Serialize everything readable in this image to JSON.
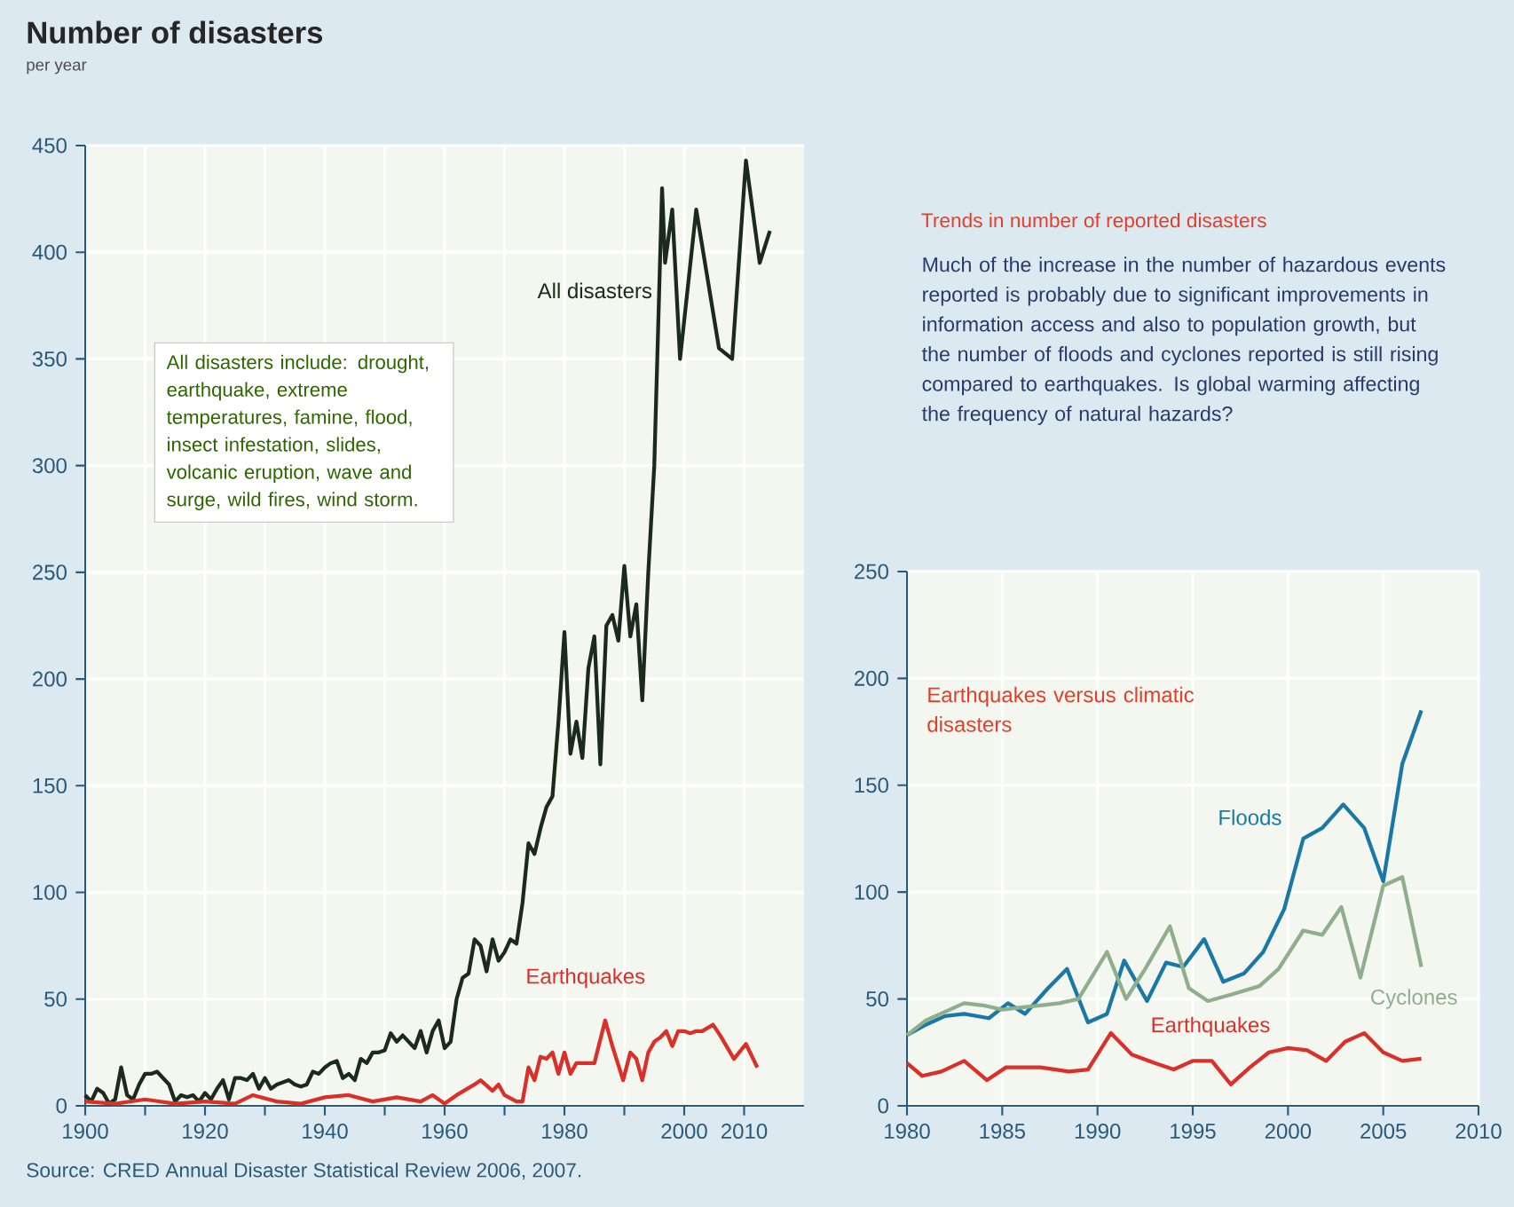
{
  "chart_data": [
    {
      "type": "line",
      "title": "Number of disasters",
      "subtitle": "per year",
      "xlim": [
        1900,
        2020
      ],
      "ylim": [
        0,
        450
      ],
      "xticks": [
        1900,
        {
          "value": 1910,
          "label": null
        },
        1920,
        {
          "value": 1930,
          "label": null
        },
        1940,
        {
          "value": 1950,
          "label": null
        },
        1960,
        {
          "value": 1970,
          "label": null
        },
        1980,
        {
          "value": 1990,
          "label": null
        },
        2000,
        2010
      ],
      "yticks": [
        0,
        50,
        100,
        150,
        200,
        250,
        300,
        350,
        400,
        450
      ],
      "grid": true,
      "marker": "none",
      "line_style": "solid",
      "series": [
        {
          "name": "All disasters",
          "color": "#1c2a1c",
          "x": [
            1900,
            1901,
            1902,
            1903,
            1904,
            1905,
            1906,
            1907,
            1908,
            1909,
            1910,
            1911,
            1912,
            1913,
            1914,
            1915,
            1916,
            1917,
            1918,
            1919,
            1920,
            1921,
            1922,
            1923,
            1924,
            1925,
            1926,
            1927,
            1928,
            1929,
            1930,
            1931,
            1932,
            1933,
            1934,
            1935,
            1936,
            1937,
            1938,
            1939,
            1940,
            1941,
            1942,
            1943,
            1944,
            1945,
            1946,
            1947,
            1948,
            1949,
            1950,
            1951,
            1952,
            1953,
            1954,
            1955,
            1956,
            1957,
            1958,
            1959,
            1960,
            1961,
            1962,
            1963,
            1964,
            1965,
            1966,
            1967,
            1968,
            1969,
            1970,
            1971,
            1972,
            1973,
            1974,
            1975,
            1976,
            1977,
            1978,
            1979,
            1980,
            1981,
            1982,
            1983,
            1984,
            1985,
            1986,
            1987,
            1988,
            1989,
            1990,
            1991,
            1992,
            1993,
            1994,
            1995,
            1996.3,
            1996.8,
            1998,
            1999.3,
            2002,
            2005.8,
            2008,
            2010.3,
            2012.6,
            2014.3
          ],
          "values": [
            5,
            2,
            8,
            6,
            1,
            3,
            18,
            5,
            3,
            10,
            15,
            15,
            16,
            13,
            10,
            2,
            5,
            4,
            5,
            2,
            6,
            3,
            8,
            12,
            3,
            13,
            13,
            12,
            15,
            8,
            13,
            8,
            10,
            11,
            12,
            10,
            9,
            10,
            16,
            15,
            18,
            20,
            21,
            13,
            15,
            12,
            22,
            20,
            25,
            25,
            26,
            34,
            30,
            33,
            30,
            27,
            35,
            25,
            35,
            40,
            27,
            30,
            50,
            60,
            62,
            78,
            75,
            63,
            78,
            68,
            72,
            78,
            76,
            95,
            123,
            118,
            130,
            140,
            145,
            180,
            222,
            165,
            180,
            163,
            205,
            220,
            160,
            225,
            230,
            218,
            253,
            220,
            235,
            190,
            250,
            300,
            430,
            395,
            420,
            350,
            420,
            355,
            350,
            443,
            395,
            410
          ]
        },
        {
          "name": "Earthquakes",
          "color": "#d9302a",
          "x": [
            1900,
            1905,
            1910,
            1915,
            1920,
            1925,
            1928,
            1932,
            1936,
            1940,
            1944,
            1948,
            1952,
            1956,
            1958,
            1960,
            1962,
            1965,
            1966,
            1968,
            1969,
            1970,
            1972,
            1973,
            1974,
            1975,
            1976,
            1977,
            1978,
            1979,
            1980,
            1981,
            1982,
            1983,
            1985,
            1986.8,
            1988,
            1989.8,
            1991,
            1992,
            1993,
            1994,
            1995,
            1996,
            1997,
            1998,
            1999,
            2000,
            2001,
            2002,
            2003,
            2004.8,
            2006,
            2008.3,
            2010.3,
            2012.2
          ],
          "values": [
            2,
            1,
            3,
            1,
            2,
            1,
            5,
            2,
            1,
            4,
            5,
            2,
            4,
            2,
            5,
            1,
            5,
            10,
            12,
            7,
            10,
            5,
            2,
            2,
            18,
            12,
            23,
            22,
            25,
            15,
            25,
            15,
            20,
            20,
            20,
            40,
            28,
            12,
            25,
            22,
            12,
            25,
            30,
            32,
            35,
            28,
            35,
            35,
            34,
            35,
            35,
            38,
            33,
            22,
            29,
            18
          ]
        }
      ],
      "annotations": [
        "All disasters include: drought, earthquake, extreme temperatures, famine, flood, insect infestation, slides, volcanic eruption, wave and surge, wild fires, wind storm.",
        "Source: CRED Annual Disaster Statistical Review 2006, 2007."
      ]
    },
    {
      "type": "line",
      "title": "Earthquakes versus climatic disasters",
      "xlim": [
        1980,
        2010
      ],
      "ylim": [
        0,
        250
      ],
      "xticks": [
        1980,
        1985,
        1990,
        1995,
        2000,
        2005,
        2010
      ],
      "yticks": [
        0,
        50,
        100,
        150,
        200,
        250
      ],
      "grid": true,
      "marker": "none",
      "line_style": "solid",
      "series": [
        {
          "name": "Floods",
          "color": "#1a78a6",
          "x": [
            1980,
            1981,
            1982,
            1983,
            1984.3,
            1985.3,
            1986.2,
            1987.4,
            1988.4,
            1989.5,
            1990.5,
            1991.4,
            1992.6,
            1993.6,
            1994.5,
            1995.6,
            1996.6,
            1997.7,
            1998.7,
            1999.8,
            2000.8,
            2001.8,
            2002.9,
            2004,
            2005,
            2006,
            2007
          ],
          "values": [
            33,
            38,
            42,
            43,
            41,
            48,
            43,
            55,
            64,
            39,
            43,
            68,
            49,
            67,
            65,
            78,
            58,
            62,
            72,
            92,
            125,
            130,
            141,
            130,
            105,
            160,
            185
          ]
        },
        {
          "name": "Cyclones",
          "color": "#8fae8c",
          "x": [
            1980,
            1981,
            1982,
            1983,
            1984,
            1985,
            1986,
            1987,
            1988,
            1989,
            1990.5,
            1991.5,
            1992.5,
            1993.8,
            1994.8,
            1995.8,
            1997,
            1998.5,
            1999.5,
            2000.8,
            2001.8,
            2002.8,
            2003.8,
            2005,
            2006,
            2007
          ],
          "values": [
            33,
            40,
            44,
            48,
            47,
            45,
            46,
            47,
            48,
            50,
            72,
            50,
            64,
            84,
            55,
            49,
            52,
            56,
            64,
            82,
            80,
            93,
            60,
            103,
            107,
            65
          ]
        },
        {
          "name": "Earthquakes",
          "color": "#d9302a",
          "x": [
            1980,
            1980.8,
            1981.8,
            1983,
            1984.2,
            1985.2,
            1987,
            1988.5,
            1989.5,
            1990.7,
            1991.8,
            1993,
            1994,
            1995,
            1996,
            1997,
            1998,
            1999,
            2000,
            2001,
            2002,
            2003,
            2004,
            2005,
            2006,
            2007
          ],
          "values": [
            20,
            14,
            16,
            21,
            12,
            18,
            18,
            16,
            17,
            34,
            24,
            20,
            17,
            21,
            21,
            10,
            18,
            25,
            27,
            26,
            21,
            30,
            34,
            25,
            21,
            22
          ]
        }
      ],
      "annotations": [
        "Trends in number of reported disasters",
        "Much of the increase in the number of hazardous events reported is probably due to significant improvements in information access and also to population growth, but the number of floods and cyclones reported is still rising compared to earthquakes. Is global warming affecting the frequency of natural hazards?"
      ]
    }
  ]
}
